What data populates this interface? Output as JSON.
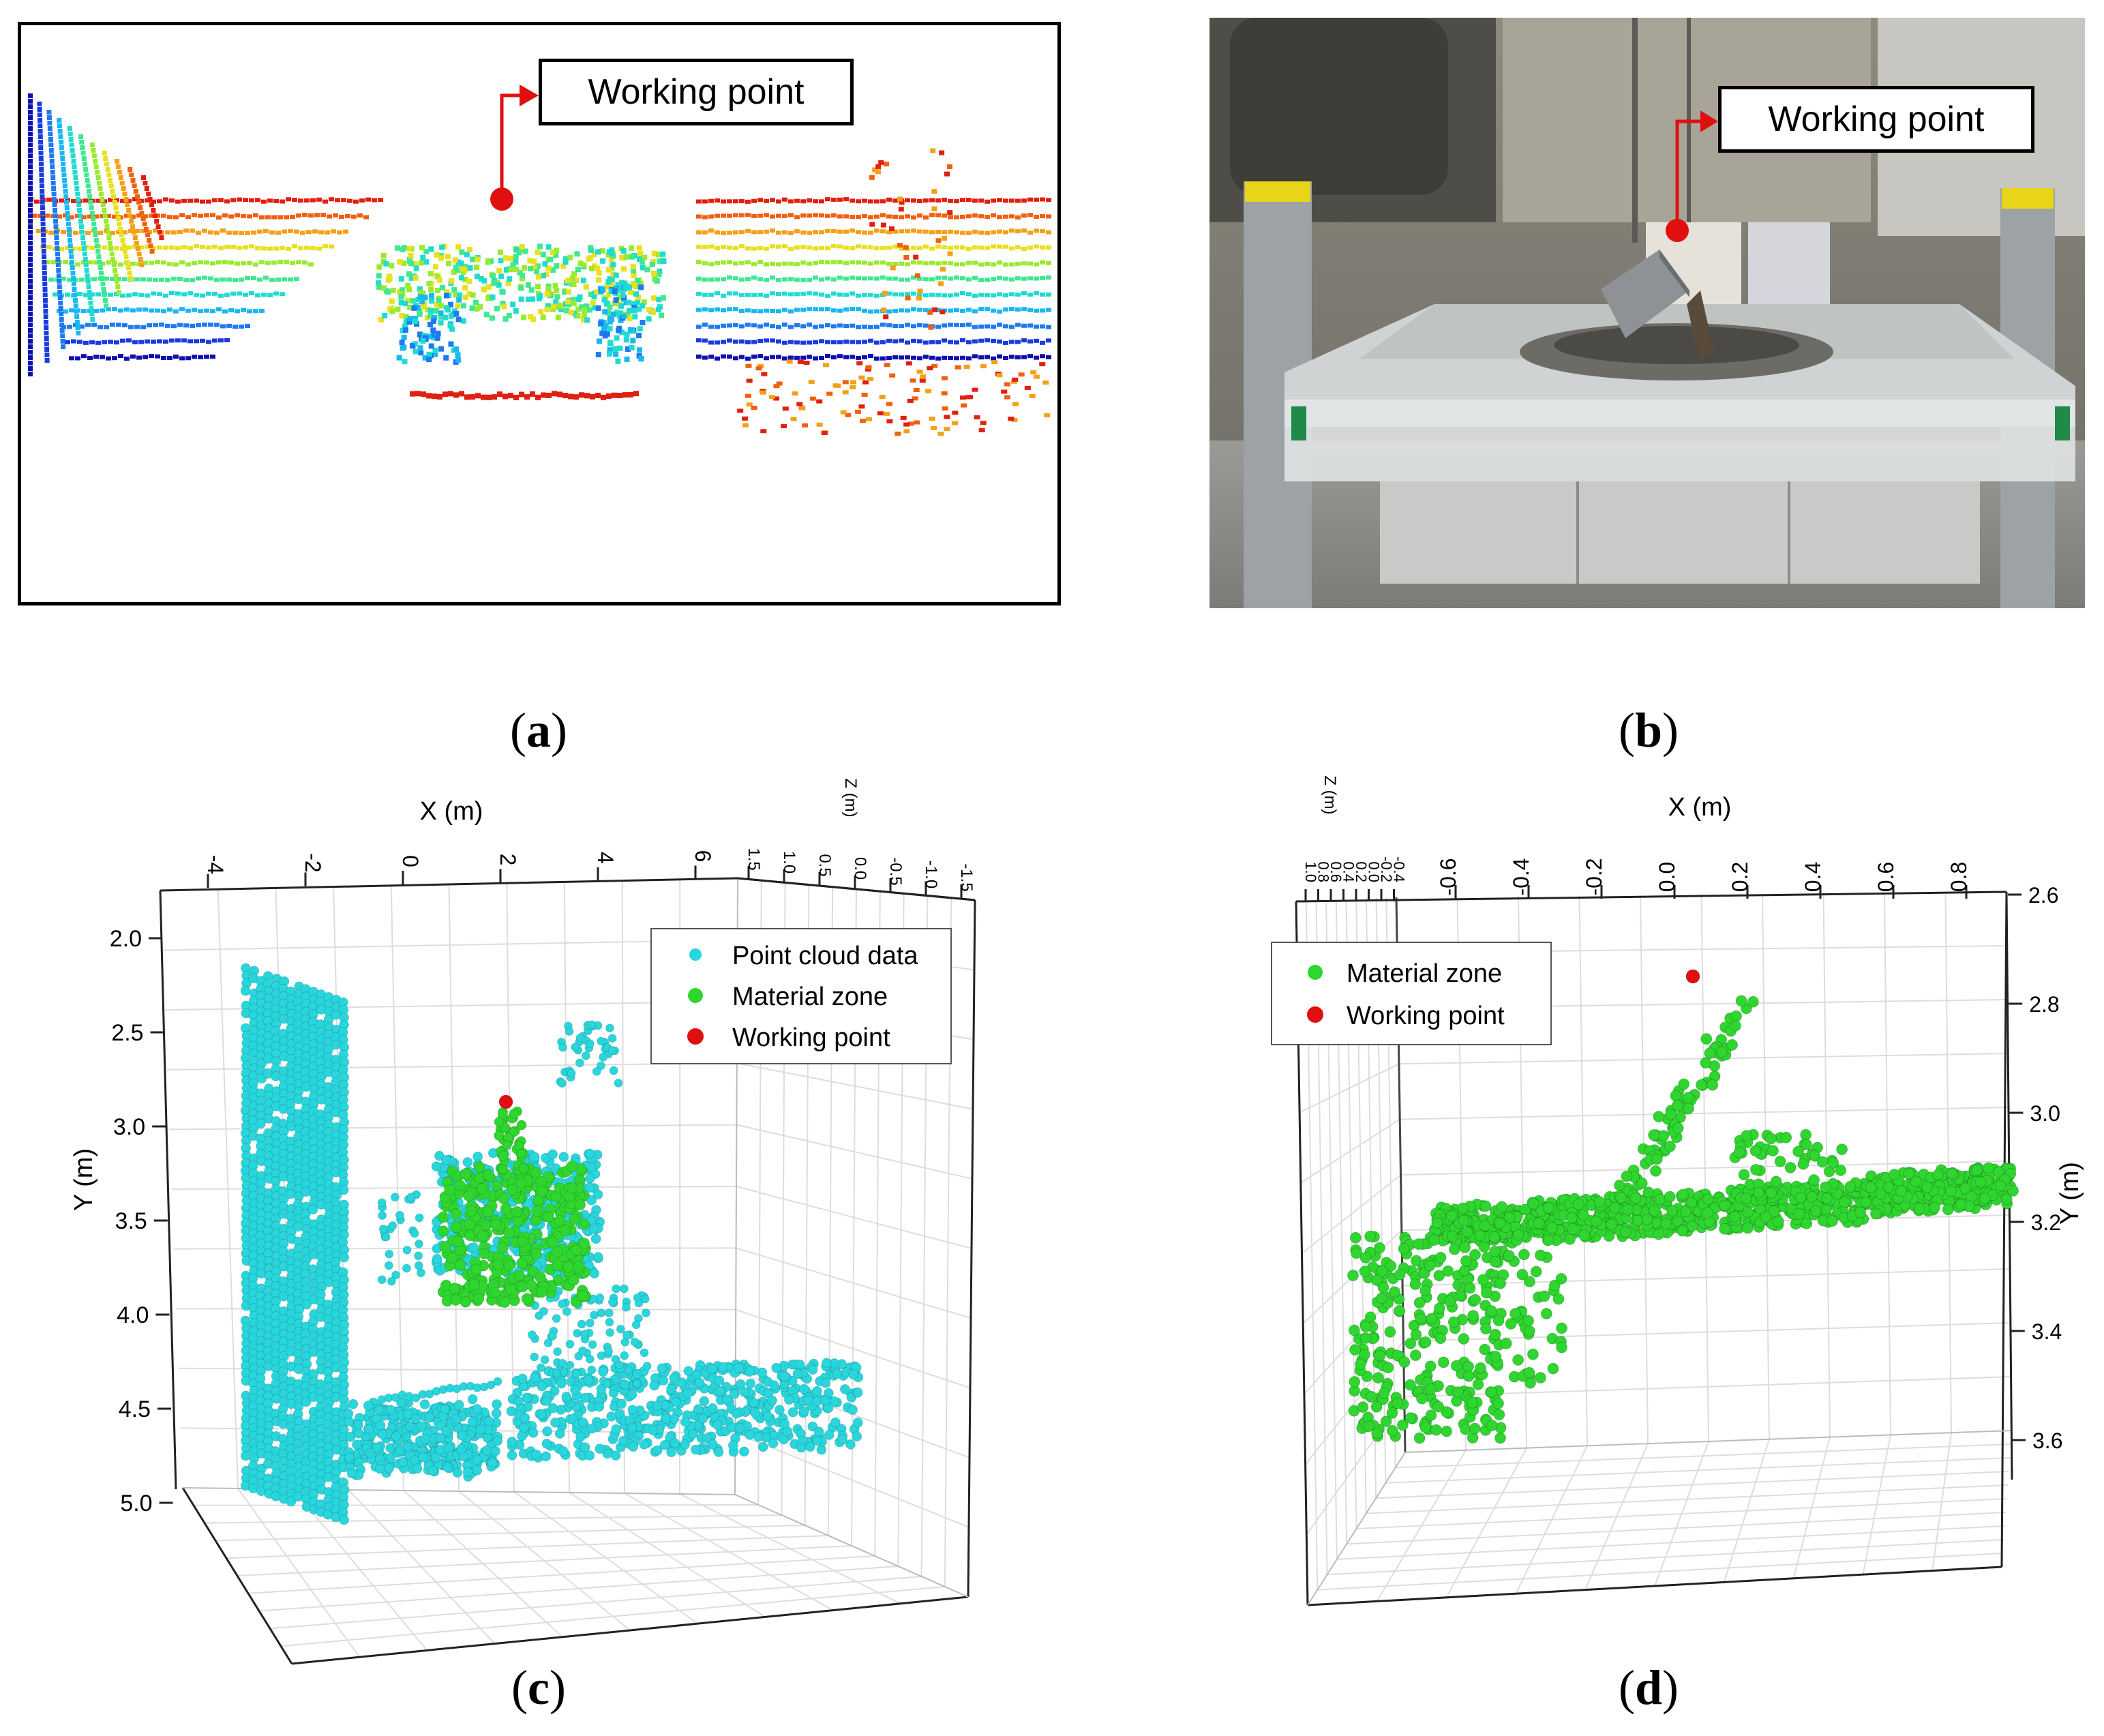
{
  "panels": {
    "a": {
      "caption": "a",
      "callout": "Working point"
    },
    "b": {
      "caption": "b",
      "callout": "Working point"
    },
    "c": {
      "caption": "c"
    },
    "d": {
      "caption": "d"
    }
  },
  "colors": {
    "point_cloud": "#29d6dc",
    "material": "#2fd62f",
    "working": "#e01010",
    "callout": "#e01010"
  },
  "chart_data": [
    {
      "panel": "c",
      "type": "scatter",
      "xlabel": "X (m)",
      "ylabel": "Y (m)",
      "zlabel": "Z (m)",
      "x_ticks": [
        "-4",
        "-2",
        "0",
        "2",
        "4",
        "6"
      ],
      "y_ticks": [
        "2.0",
        "2.5",
        "3.0",
        "3.5",
        "4.0",
        "4.5",
        "5.0"
      ],
      "z_ticks": [
        "1.5",
        "1.0",
        "0.5",
        "0.0",
        "-0.5",
        "-1.0",
        "-1.5"
      ],
      "legend": {
        "position": "top-right",
        "entries": [
          "Point cloud data",
          "Material zone",
          "Working point"
        ]
      },
      "series": [
        {
          "name": "Point cloud data",
          "description": "wall near X=-3 to -1, floor segments and excavator body around X=0 to 5, Y 2.0 to 5.0"
        },
        {
          "name": "Material zone",
          "description": "cluster around X=2, Y=3.2 to 3.8"
        },
        {
          "name": "Working point",
          "x": 2.0,
          "y": 2.85
        }
      ]
    },
    {
      "panel": "d",
      "type": "scatter",
      "xlabel": "X (m)",
      "ylabel": "Y (m)",
      "zlabel": "Z (m)",
      "x_ticks": [
        "-0.6",
        "-0.4",
        "-0.2",
        "0.0",
        "0.2",
        "0.4",
        "0.6",
        "0.8"
      ],
      "y_ticks": [
        "2.6",
        "2.8",
        "3.0",
        "3.2",
        "3.4",
        "3.6"
      ],
      "z_ticks": [
        "1.0",
        "0.8",
        "0.6",
        "0.4",
        "0.2",
        "0.0",
        "-0.2",
        "-0.4"
      ],
      "legend": {
        "position": "top-left",
        "entries": [
          "Material zone",
          "Working point"
        ]
      },
      "series": [
        {
          "name": "Material zone",
          "description": "pile body along Y 3.1 to 3.25 from X -0.6 to 0.7, spur rising to Y 2.8 near X 0.0, spill down to Y 3.6 near X -0.7"
        },
        {
          "name": "Working point",
          "x": 0.06,
          "y": 2.75
        }
      ]
    }
  ]
}
